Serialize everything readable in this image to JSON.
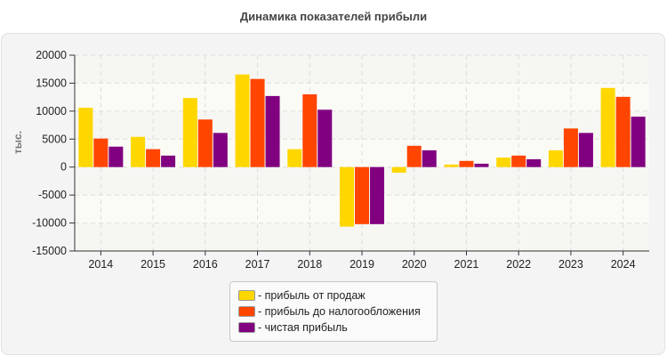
{
  "chart_data": {
    "type": "bar",
    "title": "Динамика показателей прибыли",
    "ylabel": "тыс.",
    "xlabel": "",
    "ylim": [
      -15000,
      20000
    ],
    "yticks": [
      "20000",
      "15000",
      "10000",
      "5000",
      "0",
      "-5000",
      "-10000",
      "-15000"
    ],
    "grid": true,
    "legend_position": "bottom",
    "categories": [
      "2014",
      "2015",
      "2016",
      "2017",
      "2018",
      "2019",
      "2020",
      "2021",
      "2022",
      "2023",
      "2024"
    ],
    "series": [
      {
        "name": "- прибыль от продаж",
        "color": "#FFD700",
        "values": [
          10600,
          5400,
          12350,
          16550,
          3200,
          -10650,
          -1000,
          450,
          1700,
          3000,
          14150
        ]
      },
      {
        "name": "- прибыль до налогообложения",
        "color": "#FF4500",
        "values": [
          5100,
          3200,
          8500,
          15750,
          13000,
          -10200,
          3800,
          1100,
          2050,
          6900,
          12550
        ]
      },
      {
        "name": "- чистая прибыль",
        "color": "#800080",
        "values": [
          3650,
          2050,
          6100,
          12700,
          10250,
          -10200,
          3000,
          600,
          1400,
          6100,
          9000
        ]
      }
    ]
  }
}
